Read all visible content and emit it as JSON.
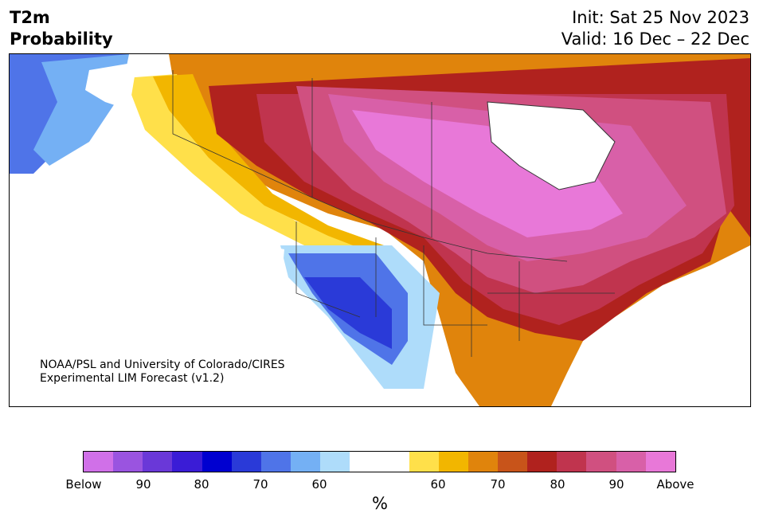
{
  "header": {
    "title_line1": "T2m",
    "title_line2": "Probability",
    "init": "Init: Sat 25 Nov 2023",
    "valid": "Valid: 16 Dec – 22 Dec"
  },
  "map": {
    "credit_line1": "NOAA/PSL and University of Colorado/CIRES",
    "credit_line2": "Experimental LIM Forecast (v1.2)"
  },
  "colorbar": {
    "colors": [
      "#d070e8",
      "#9a54e0",
      "#6a38d8",
      "#3a1cd6",
      "#0000d0",
      "#2a3ad8",
      "#4f74e8",
      "#74b0f4",
      "#aedcfa",
      "#ffffff",
      "#ffffff",
      "#ffe04a",
      "#f2b600",
      "#e0840c",
      "#c8541a",
      "#b0221e",
      "#c0344e",
      "#d05080",
      "#d860a8",
      "#e878d8"
    ],
    "tick_labels": [
      "Below",
      "90",
      "80",
      "70",
      "60",
      "60",
      "70",
      "80",
      "90",
      "Above"
    ],
    "unit": "%"
  },
  "colors": {
    "above_high": "#e878d8",
    "above_mid": "#d05080",
    "above_red": "#b0221e",
    "above_orange": "#e0840c",
    "above_yellow": "#ffe04a",
    "below_light": "#aedcfa",
    "below_mid": "#4f74e8",
    "below_deep": "#2a3ad8"
  }
}
